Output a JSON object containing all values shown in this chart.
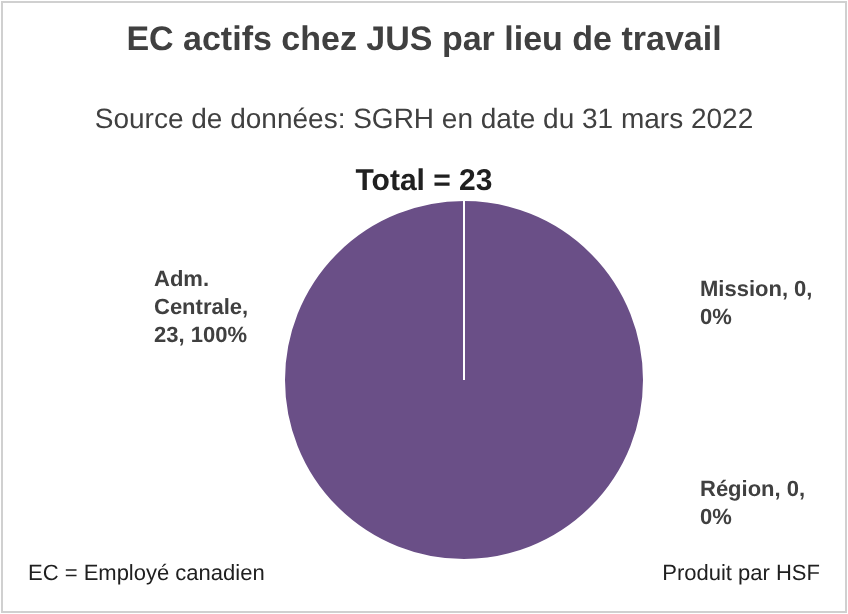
{
  "chart_data": {
    "type": "pie",
    "title": "EC actifs chez JUS par lieu de travail",
    "subtitle": "Source de données: SGRH en date du 31 mars 2022",
    "categories": [
      "Adm. Centrale",
      "Mission",
      "Région"
    ],
    "values": [
      23,
      0,
      0
    ],
    "colors": [
      "#6a4f87",
      "#4f81bd",
      "#c0504d"
    ],
    "value_labels": [
      ", 23, 100%",
      ", 0, 0%",
      ", 0, 0%"
    ],
    "annotations": [
      "Total = 23",
      "EC = Employé canadien",
      "Produit par HSF"
    ]
  }
}
